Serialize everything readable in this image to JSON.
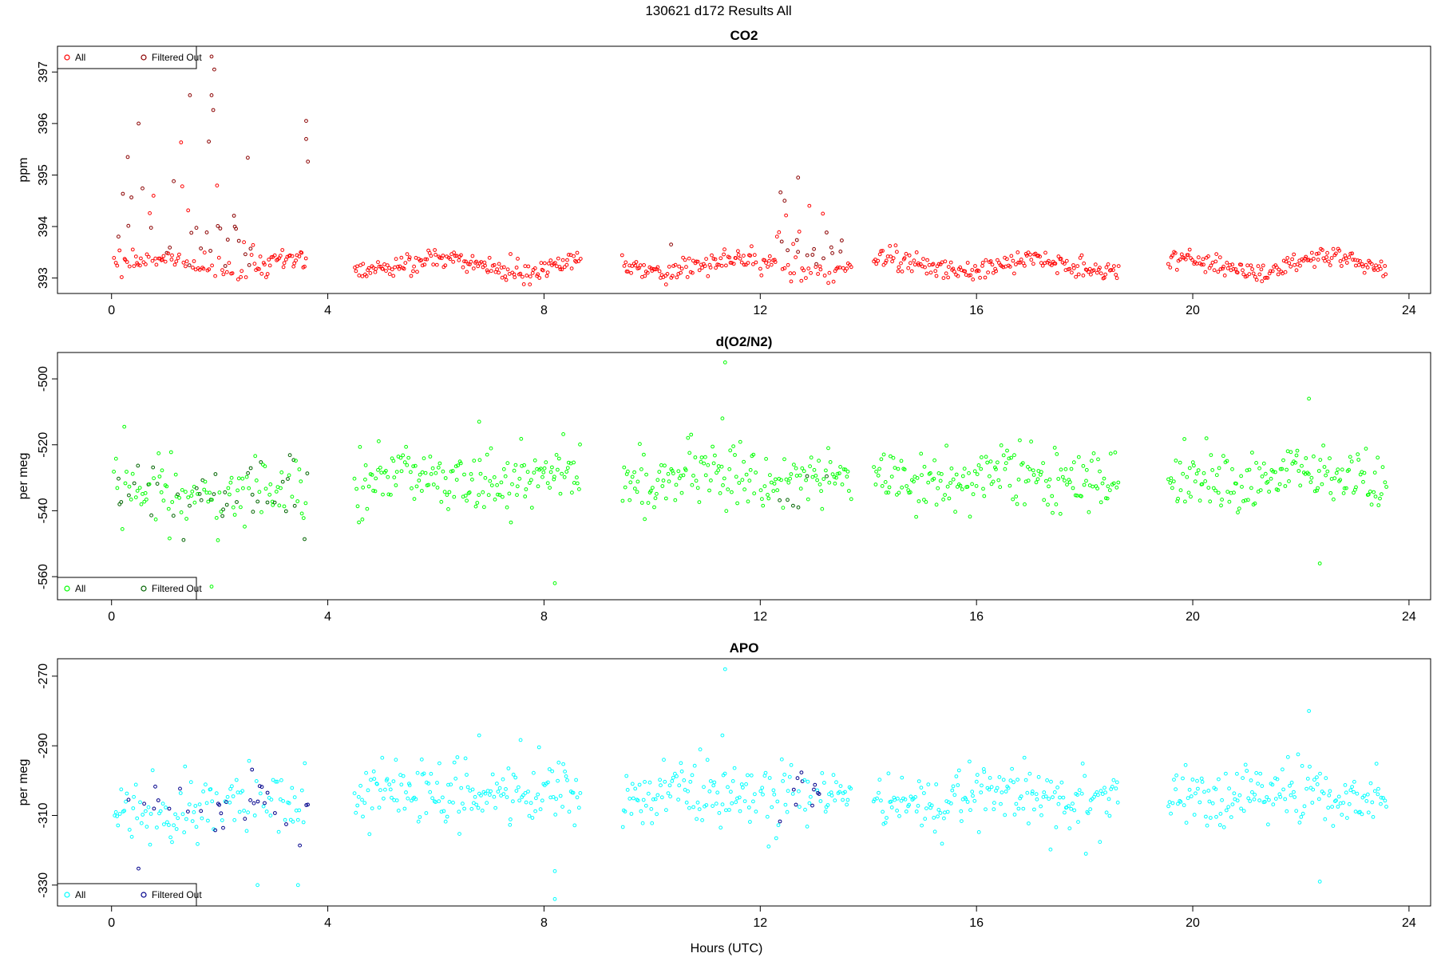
{
  "figure": {
    "title": "130621   d172   Results All",
    "xlabel": "Hours (UTC)"
  },
  "chart_data": [
    {
      "type": "scatter",
      "title": "CO2",
      "xlabel": "",
      "ylabel": "ppm",
      "xlim": [
        -1,
        24.4
      ],
      "ylim": [
        392.7,
        397.5
      ],
      "xticks": [
        0,
        4,
        8,
        12,
        16,
        20,
        24
      ],
      "yticks": [
        393,
        394,
        395,
        396,
        397
      ],
      "legend_position": "top-left",
      "series": [
        {
          "name": "All",
          "color": "#ff0000"
        },
        {
          "name": "Filtered Out",
          "color": "#8b0000"
        }
      ],
      "segments": [
        [
          0.05,
          3.65
        ],
        [
          4.5,
          8.7
        ],
        [
          9.45,
          11.95
        ],
        [
          12.0,
          13.7
        ],
        [
          14.1,
          18.65
        ],
        [
          19.55,
          23.6
        ]
      ],
      "base": 393.25,
      "sd": 0.1,
      "wave": 0.12,
      "outliers": [
        {
          "x": 0.3,
          "y": 395.35
        },
        {
          "x": 0.5,
          "y": 396.0
        },
        {
          "x": 1.45,
          "y": 396.55
        },
        {
          "x": 1.85,
          "y": 397.3
        },
        {
          "x": 1.9,
          "y": 397.05
        },
        {
          "x": 1.85,
          "y": 396.55
        },
        {
          "x": 1.8,
          "y": 395.65
        },
        {
          "x": 3.6,
          "y": 396.05
        },
        {
          "x": 3.6,
          "y": 395.7
        },
        {
          "x": 12.7,
          "y": 394.95
        },
        {
          "x": 12.45,
          "y": 394.5
        },
        {
          "x": 10.35,
          "y": 393.65
        }
      ],
      "spikes": [
        {
          "x0": 0.1,
          "x1": 2.7,
          "amp": 1.1
        },
        {
          "x0": 3.5,
          "x1": 3.65,
          "amp": 1.2
        },
        {
          "x0": 12.3,
          "x1": 13.6,
          "amp": 0.6
        }
      ]
    },
    {
      "type": "scatter",
      "title": "d(O2/N2)",
      "xlabel": "",
      "ylabel": "per meg",
      "xlim": [
        -1,
        24.4
      ],
      "ylim": [
        -567,
        -492
      ],
      "xticks": [
        0,
        4,
        8,
        12,
        16,
        20,
        24
      ],
      "yticks": [
        -560,
        -540,
        -520,
        -500
      ],
      "legend_position": "bottom-left",
      "series": [
        {
          "name": "All",
          "color": "#00ff00"
        },
        {
          "name": "Filtered Out",
          "color": "#006400"
        }
      ],
      "segments": [
        [
          0.05,
          3.65
        ],
        [
          4.5,
          8.7
        ],
        [
          9.45,
          11.95
        ],
        [
          12.0,
          13.7
        ],
        [
          14.1,
          18.65
        ],
        [
          19.55,
          23.6
        ]
      ],
      "base": -530,
      "sd": 4.5,
      "wave": 1.5,
      "outliers": [
        {
          "x": 11.35,
          "y": -495
        },
        {
          "x": 8.2,
          "y": -562
        },
        {
          "x": 22.35,
          "y": -556
        },
        {
          "x": 22.15,
          "y": -506
        },
        {
          "x": 1.85,
          "y": -563
        },
        {
          "x": 6.8,
          "y": -513
        },
        {
          "x": 11.3,
          "y": -512
        }
      ],
      "spikes": [
        {
          "x0": 0.1,
          "x1": 3.65,
          "amp": -9
        }
      ]
    },
    {
      "type": "scatter",
      "title": "APO",
      "xlabel": "Hours (UTC)",
      "ylabel": "per meg",
      "xlim": [
        -1,
        24.4
      ],
      "ylim": [
        -336,
        -265
      ],
      "xticks": [
        0,
        4,
        8,
        12,
        16,
        20,
        24
      ],
      "yticks": [
        -330,
        -310,
        -290,
        -270
      ],
      "legend_position": "bottom-left",
      "series": [
        {
          "name": "All",
          "color": "#00ffff"
        },
        {
          "name": "Filtered Out",
          "color": "#00008b"
        }
      ],
      "segments": [
        [
          0.05,
          3.65
        ],
        [
          4.5,
          8.7
        ],
        [
          9.45,
          11.95
        ],
        [
          12.0,
          13.7
        ],
        [
          14.1,
          18.65
        ],
        [
          19.55,
          23.6
        ]
      ],
      "base": -304,
      "sd": 4.5,
      "wave": 1.5,
      "outliers": [
        {
          "x": 11.35,
          "y": -268
        },
        {
          "x": 8.2,
          "y": -334
        },
        {
          "x": 22.35,
          "y": -329
        },
        {
          "x": 22.15,
          "y": -280
        },
        {
          "x": 2.7,
          "y": -330
        },
        {
          "x": 3.45,
          "y": -330
        },
        {
          "x": 6.8,
          "y": -287
        },
        {
          "x": 11.3,
          "y": -287
        },
        {
          "x": 8.2,
          "y": -326
        }
      ],
      "spikes": [
        {
          "x0": 0.1,
          "x1": 3.65,
          "amp": -6
        }
      ]
    }
  ]
}
